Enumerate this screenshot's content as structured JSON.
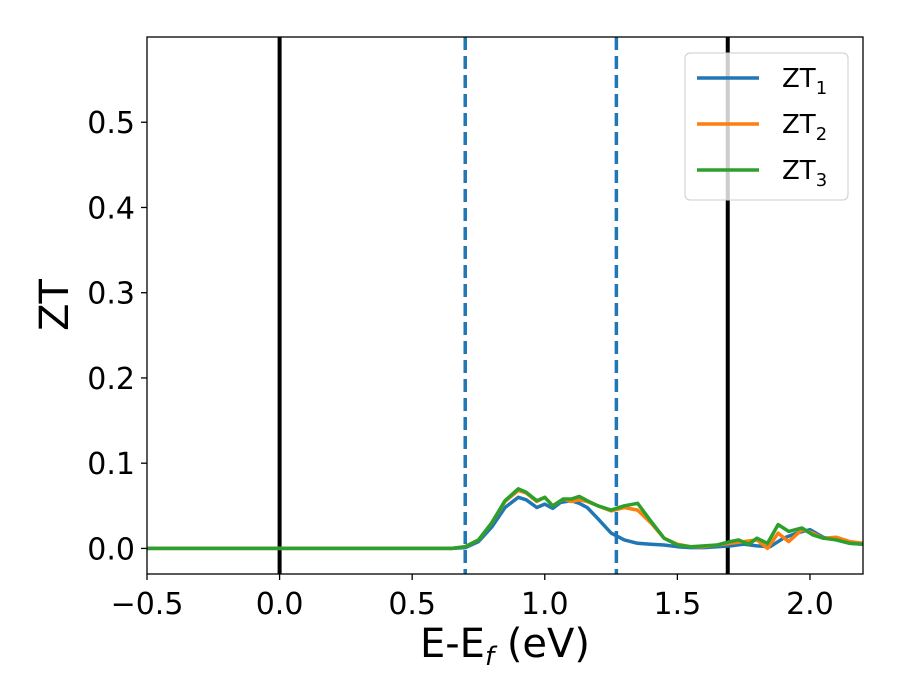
{
  "chart_data": {
    "type": "line",
    "title": "",
    "xlabel": {
      "main": "E-E",
      "sub": "f",
      "tail": " (eV)"
    },
    "ylabel": "ZT",
    "xlim": [
      -0.5,
      2.2
    ],
    "ylim": [
      -0.03,
      0.6
    ],
    "xticks": [
      -0.5,
      0.0,
      0.5,
      1.0,
      1.5,
      2.0
    ],
    "xtick_labels": [
      "−0.5",
      "0.0",
      "0.5",
      "1.0",
      "1.5",
      "2.0"
    ],
    "yticks": [
      0.0,
      0.1,
      0.2,
      0.3,
      0.4,
      0.5
    ],
    "ytick_labels": [
      "0.0",
      "0.1",
      "0.2",
      "0.3",
      "0.4",
      "0.5"
    ],
    "grid": false,
    "legend_position": "top-right",
    "vlines": [
      {
        "x": 0.0,
        "style": "solid",
        "color": "#000000"
      },
      {
        "x": 1.69,
        "style": "solid",
        "color": "#000000"
      },
      {
        "x": 0.7,
        "style": "dashed",
        "color": "#1f77b4"
      },
      {
        "x": 1.27,
        "style": "dashed",
        "color": "#1f77b4"
      }
    ],
    "series": [
      {
        "name": "ZT",
        "sub": "1",
        "color": "#1f77b4",
        "x": [
          -0.5,
          0.0,
          0.5,
          0.65,
          0.7,
          0.75,
          0.8,
          0.85,
          0.9,
          0.93,
          0.97,
          1.0,
          1.03,
          1.06,
          1.1,
          1.13,
          1.16,
          1.2,
          1.25,
          1.3,
          1.35,
          1.4,
          1.45,
          1.5,
          1.55,
          1.6,
          1.65,
          1.7,
          1.75,
          1.8,
          1.85,
          1.9,
          1.95,
          2.0,
          2.05,
          2.1,
          2.15,
          2.2
        ],
        "y": [
          0.0,
          0.0,
          0.0,
          0.0,
          0.001,
          0.008,
          0.025,
          0.048,
          0.06,
          0.057,
          0.048,
          0.052,
          0.047,
          0.054,
          0.056,
          0.053,
          0.048,
          0.035,
          0.018,
          0.01,
          0.006,
          0.005,
          0.004,
          0.002,
          0.001,
          0.001,
          0.002,
          0.003,
          0.005,
          0.003,
          0.002,
          0.012,
          0.018,
          0.022,
          0.013,
          0.01,
          0.006,
          0.005
        ]
      },
      {
        "name": "ZT",
        "sub": "2",
        "color": "#ff7f0e",
        "x": [
          -0.5,
          0.0,
          0.5,
          0.65,
          0.7,
          0.75,
          0.8,
          0.85,
          0.9,
          0.93,
          0.97,
          1.0,
          1.03,
          1.07,
          1.1,
          1.13,
          1.16,
          1.2,
          1.25,
          1.3,
          1.35,
          1.4,
          1.45,
          1.5,
          1.55,
          1.6,
          1.65,
          1.7,
          1.75,
          1.8,
          1.84,
          1.88,
          1.92,
          1.97,
          2.01,
          2.05,
          2.1,
          2.15,
          2.2
        ],
        "y": [
          0.0,
          0.0,
          0.0,
          0.0,
          0.002,
          0.01,
          0.03,
          0.055,
          0.068,
          0.065,
          0.055,
          0.06,
          0.05,
          0.058,
          0.055,
          0.057,
          0.055,
          0.05,
          0.044,
          0.048,
          0.045,
          0.03,
          0.012,
          0.005,
          0.002,
          0.002,
          0.004,
          0.006,
          0.008,
          0.01,
          0.0,
          0.018,
          0.008,
          0.022,
          0.018,
          0.012,
          0.013,
          0.008,
          0.006
        ]
      },
      {
        "name": "ZT",
        "sub": "3",
        "color": "#2ca02c",
        "x": [
          -0.5,
          0.0,
          0.5,
          0.65,
          0.7,
          0.75,
          0.8,
          0.85,
          0.9,
          0.93,
          0.97,
          1.0,
          1.03,
          1.07,
          1.1,
          1.13,
          1.16,
          1.2,
          1.25,
          1.3,
          1.35,
          1.4,
          1.45,
          1.5,
          1.55,
          1.6,
          1.65,
          1.7,
          1.73,
          1.77,
          1.8,
          1.84,
          1.88,
          1.92,
          1.97,
          2.01,
          2.05,
          2.1,
          2.15,
          2.2
        ],
        "y": [
          0.0,
          0.0,
          0.0,
          0.0,
          0.002,
          0.01,
          0.03,
          0.056,
          0.07,
          0.066,
          0.056,
          0.06,
          0.05,
          0.058,
          0.058,
          0.061,
          0.056,
          0.05,
          0.045,
          0.05,
          0.053,
          0.032,
          0.012,
          0.004,
          0.002,
          0.003,
          0.004,
          0.008,
          0.01,
          0.005,
          0.012,
          0.006,
          0.028,
          0.02,
          0.024,
          0.016,
          0.012,
          0.01,
          0.006,
          0.005
        ]
      }
    ]
  }
}
